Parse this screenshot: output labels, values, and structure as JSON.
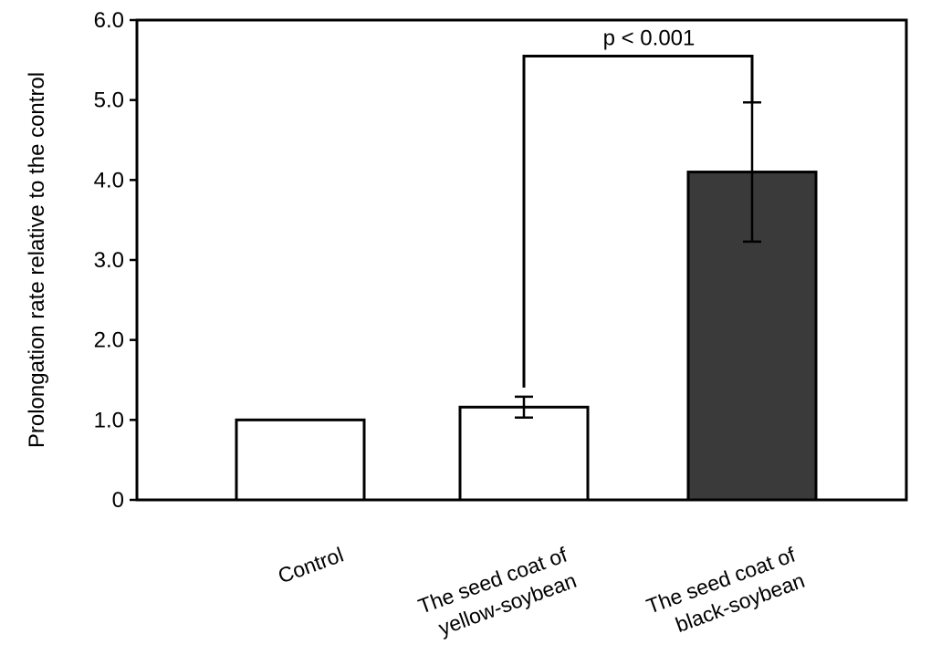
{
  "chart_data": {
    "type": "bar",
    "title": "",
    "xlabel": "",
    "ylabel": "Prolongation rate relative to the control",
    "ylim": [
      0,
      6
    ],
    "yticks": [
      "0",
      "1.0",
      "2.0",
      "3.0",
      "4.0",
      "5.0",
      "6.0"
    ],
    "ytick_values": [
      0,
      1,
      2,
      3,
      4,
      5,
      6
    ],
    "grid": false,
    "legend": "none",
    "categories": [
      [
        "Control"
      ],
      [
        "The seed coat of",
        "yellow-soybean"
      ],
      [
        "The seed coat of",
        "black-soybean"
      ]
    ],
    "values": [
      1.0,
      1.16,
      4.1
    ],
    "errors": [
      0,
      0.13,
      0.87
    ],
    "bar_colors": [
      "#ffffff",
      "#ffffff",
      "#3a3a3a"
    ],
    "annotations": [
      {
        "text": "p < 0.001",
        "from_category": 1,
        "to_category": 2,
        "level": 5.55
      }
    ]
  }
}
